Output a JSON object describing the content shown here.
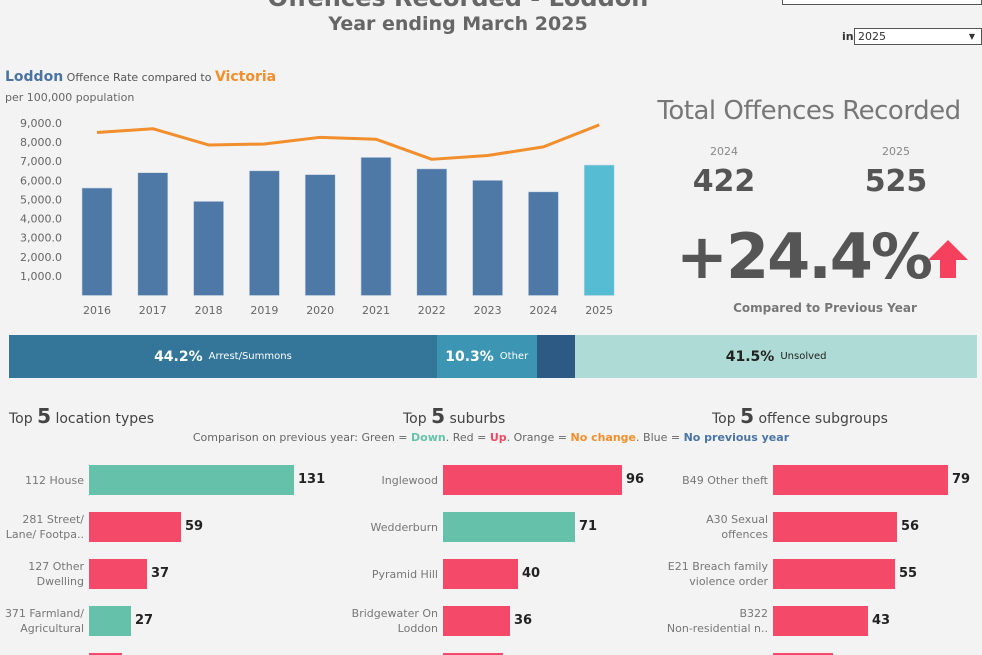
{
  "header": {
    "title": "Offences Recorded - Loddon",
    "subtitle": "Year ending March 2025",
    "year_filter_label": "in",
    "year_filter_value": "2025"
  },
  "rate_chart": {
    "heading_area": "Loddon",
    "heading_mid": "Offence Rate compared to",
    "heading_compare": "Victoria",
    "subheading": "per 100,000 population"
  },
  "chart_data": {
    "type": "bar",
    "categories": [
      "2016",
      "2017",
      "2018",
      "2019",
      "2020",
      "2021",
      "2022",
      "2023",
      "2024",
      "2025"
    ],
    "series": [
      {
        "name": "Loddon",
        "kind": "bar",
        "values": [
          5600,
          6400,
          4900,
          6500,
          6300,
          7200,
          6600,
          6000,
          5400,
          6800
        ]
      },
      {
        "name": "Victoria",
        "kind": "line",
        "values": [
          8500,
          8700,
          7850,
          7900,
          8250,
          8150,
          7100,
          7300,
          7750,
          8900
        ]
      }
    ],
    "yticks": [
      "9,000.0",
      "8,000.0",
      "7,000.0",
      "6,000.0",
      "5,000.0",
      "4,000.0",
      "3,000.0",
      "2,000.0",
      "1,000.0"
    ],
    "ylim": [
      0,
      9500
    ],
    "colors": {
      "bar": "#4e79a7",
      "bar_current": "#56bcd4",
      "line": "#f28e2b"
    }
  },
  "totals": {
    "title": "Total Offences Recorded",
    "prev_year": "2024",
    "prev_count": "422",
    "curr_year": "2025",
    "curr_count": "525",
    "change": "+24.4%",
    "direction_icon": "arrow-up-icon",
    "compared_label": "Compared to Previous Year",
    "up_color": "#f5405e"
  },
  "outcomes": [
    {
      "pct": "44.2%",
      "label": "Arrest/Summons",
      "share": 44.2,
      "color": "#33769a",
      "text": "#ffffff"
    },
    {
      "pct": "10.3%",
      "label": "Other",
      "share": 10.3,
      "color": "#3c95b2",
      "text": "#ffffff"
    },
    {
      "pct": "",
      "label": "",
      "share": 4.0,
      "color": "#2c5a85",
      "text": "#ffffff"
    },
    {
      "pct": "41.5%",
      "label": "Unsolved",
      "share": 41.5,
      "color": "#aedbd5",
      "text": "#222222"
    }
  ],
  "legend": {
    "prefix": "Comparison on previous year: Green = ",
    "down": "Down",
    "red": ". Red = ",
    "up": "Up",
    "orange": ". Orange = ",
    "nochange": "No change",
    "blue": ". Blue = ",
    "noprev": "No previous year"
  },
  "panels": [
    {
      "title_pre": "Top ",
      "title_n": "5",
      "title_post": " location types",
      "max": 131,
      "items": [
        {
          "label1": "112 House",
          "label2": "",
          "value": 131,
          "value_text": "131",
          "color": "#66c1aa"
        },
        {
          "label1": "281 Street/",
          "label2": "Lane/ Footpa..",
          "value": 59,
          "value_text": "59",
          "color": "#f5496a"
        },
        {
          "label1": "127 Other",
          "label2": "Dwelling",
          "value": 37,
          "value_text": "37",
          "color": "#f5496a"
        },
        {
          "label1": "371 Farmland/",
          "label2": "Agricultural",
          "value": 27,
          "value_text": "27",
          "color": "#66c1aa"
        }
      ]
    },
    {
      "title_pre": "Top ",
      "title_n": "5",
      "title_post": " suburbs",
      "max": 96,
      "items": [
        {
          "label1": "Inglewood",
          "label2": "",
          "value": 96,
          "value_text": "96",
          "color": "#f5496a"
        },
        {
          "label1": "Wedderburn",
          "label2": "",
          "value": 71,
          "value_text": "71",
          "color": "#66c1aa"
        },
        {
          "label1": "Pyramid Hill",
          "label2": "",
          "value": 40,
          "value_text": "40",
          "color": "#f5496a"
        },
        {
          "label1": "Bridgewater On",
          "label2": "Loddon",
          "value": 36,
          "value_text": "36",
          "color": "#f5496a"
        }
      ]
    },
    {
      "title_pre": "Top ",
      "title_n": "5",
      "title_post": " offence subgroups",
      "max": 79,
      "items": [
        {
          "label1": "B49 Other theft",
          "label2": "",
          "value": 79,
          "value_text": "79",
          "color": "#f5496a"
        },
        {
          "label1": "A30 Sexual",
          "label2": "offences",
          "value": 56,
          "value_text": "56",
          "color": "#f5496a"
        },
        {
          "label1": "E21 Breach family",
          "label2": "violence order",
          "value": 55,
          "value_text": "55",
          "color": "#f5496a"
        },
        {
          "label1": "B322",
          "label2": "Non-residential n..",
          "value": 43,
          "value_text": "43",
          "color": "#f5496a"
        }
      ]
    }
  ]
}
